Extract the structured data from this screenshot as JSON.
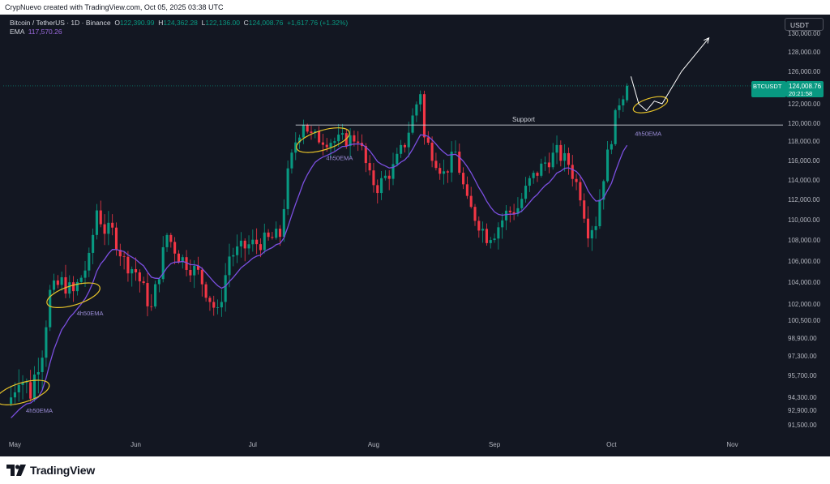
{
  "header": {
    "credit": "CrypNuevo created with TradingView.com, Oct 05, 2025 03:38 UTC"
  },
  "legend": {
    "symbol": "Bitcoin / TetherUS · 1D · Binance",
    "o_label": "O",
    "o_value": "122,390.99",
    "h_label": "H",
    "h_value": "124,362.28",
    "l_label": "L",
    "l_value": "122,136.00",
    "c_label": "C",
    "c_value": "124,008.76",
    "change": "+1,617.76 (+1.32%)",
    "ema_label": "EMA",
    "ema_value": "117,570.26"
  },
  "currency_button": "USDT",
  "price_tag": {
    "symbol": "BTCUSDT",
    "price": "124,008.76",
    "countdown": "20:21:58"
  },
  "footer": {
    "brand": "TradingView"
  },
  "colors": {
    "up": "#089981",
    "down": "#f23645",
    "ema": "#7b4fe0",
    "ellipse": "#e6c229",
    "background": "#131722"
  },
  "chart_data": {
    "type": "candlestick",
    "timeframe": "1D",
    "x_labels": [
      "May",
      "Jun",
      "Jul",
      "Aug",
      "Sep",
      "Oct",
      "Nov"
    ],
    "x_label_dates": [
      "2025-05-01",
      "2025-06-01",
      "2025-07-01",
      "2025-08-01",
      "2025-09-01",
      "2025-10-01",
      "2025-11-01"
    ],
    "x_range": [
      "2025-04-28",
      "2025-11-14"
    ],
    "y_ticks": [
      91500,
      92900,
      94300,
      95700,
      97300,
      98900,
      100500,
      102000,
      104000,
      106000,
      108000,
      110000,
      112000,
      114000,
      116000,
      118000,
      120000,
      122000,
      124000,
      126000,
      128000,
      130000
    ],
    "y_tick_labels": [
      "91,500.00",
      "92,900.00",
      "94,300.00",
      "95,700.00",
      "97,300.00",
      "98,900.00",
      "100,500.00",
      "102,000.00",
      "104,000.00",
      "106,000.00",
      "108,000.00",
      "110,000.00",
      "112,000.00",
      "114,000.00",
      "116,000.00",
      "118,000.00",
      "120,000.00",
      "122,000.00",
      "124,000.00",
      "126,000.00",
      "128,000.00",
      "130,000.00"
    ],
    "close_anchors": [
      [
        "2025-04-30",
        94300
      ],
      [
        "2025-05-02",
        95800
      ],
      [
        "2025-05-05",
        94600
      ],
      [
        "2025-05-08",
        97800
      ],
      [
        "2025-05-10",
        103000
      ],
      [
        "2025-05-13",
        104000
      ],
      [
        "2025-05-16",
        103000
      ],
      [
        "2025-05-20",
        106000
      ],
      [
        "2025-05-22",
        111000
      ],
      [
        "2025-05-24",
        109000
      ],
      [
        "2025-05-26",
        108800
      ],
      [
        "2025-05-29",
        106000
      ],
      [
        "2025-06-01",
        105000
      ],
      [
        "2025-06-05",
        101500
      ],
      [
        "2025-06-09",
        108500
      ],
      [
        "2025-06-12",
        106500
      ],
      [
        "2025-06-17",
        104800
      ],
      [
        "2025-06-22",
        101000
      ],
      [
        "2025-06-25",
        106500
      ],
      [
        "2025-06-30",
        107500
      ],
      [
        "2025-07-05",
        108000
      ],
      [
        "2025-07-08",
        108500
      ],
      [
        "2025-07-10",
        114500
      ],
      [
        "2025-07-12",
        118000
      ],
      [
        "2025-07-14",
        120200
      ],
      [
        "2025-07-16",
        118500
      ],
      [
        "2025-07-22",
        118000
      ],
      [
        "2025-07-28",
        118400
      ],
      [
        "2025-07-31",
        114200
      ],
      [
        "2025-08-02",
        113300
      ],
      [
        "2025-08-06",
        115200
      ],
      [
        "2025-08-09",
        117800
      ],
      [
        "2025-08-13",
        123400
      ],
      [
        "2025-08-14",
        118300
      ],
      [
        "2025-08-19",
        114600
      ],
      [
        "2025-08-22",
        116800
      ],
      [
        "2025-08-25",
        111600
      ],
      [
        "2025-08-30",
        108400
      ],
      [
        "2025-09-01",
        108800
      ],
      [
        "2025-09-04",
        110600
      ],
      [
        "2025-09-07",
        111200
      ],
      [
        "2025-09-10",
        113800
      ],
      [
        "2025-09-14",
        115800
      ],
      [
        "2025-09-17",
        116800
      ],
      [
        "2025-09-20",
        115700
      ],
      [
        "2025-09-23",
        112600
      ],
      [
        "2025-09-25",
        109000
      ],
      [
        "2025-09-27",
        109800
      ],
      [
        "2025-09-29",
        114500
      ],
      [
        "2025-10-01",
        118500
      ],
      [
        "2025-10-02",
        120500
      ],
      [
        "2025-10-03",
        122300
      ],
      [
        "2025-10-05",
        124008.76
      ]
    ],
    "ema": {
      "label": "EMA",
      "last_value": 117570.26
    },
    "annotations": [
      {
        "type": "horizontal-line",
        "label": "Support",
        "price": 119800,
        "from": "2025-07-12"
      },
      {
        "type": "ellipse",
        "label": "4h50EMA",
        "center": [
          "2025-05-03",
          94600
        ]
      },
      {
        "type": "ellipse",
        "label": "4h50EMA",
        "center": [
          "2025-05-16",
          102800
        ]
      },
      {
        "type": "ellipse",
        "label": "4h50EMA",
        "center": [
          "2025-07-19",
          118100
        ]
      },
      {
        "type": "ellipse",
        "label": "",
        "center": [
          "2025-10-11",
          121900
        ]
      },
      {
        "type": "text",
        "label": "4h50EMA",
        "at": [
          "2025-10-07",
          118600
        ]
      },
      {
        "type": "projection-path",
        "points": [
          [
            "2025-10-06",
            125300
          ],
          [
            "2025-10-08",
            122000
          ],
          [
            "2025-10-10",
            121300
          ],
          [
            "2025-10-12",
            122300
          ],
          [
            "2025-10-14",
            122000
          ],
          [
            "2025-10-19",
            126000
          ],
          [
            "2025-10-26",
            129500
          ]
        ]
      }
    ]
  }
}
